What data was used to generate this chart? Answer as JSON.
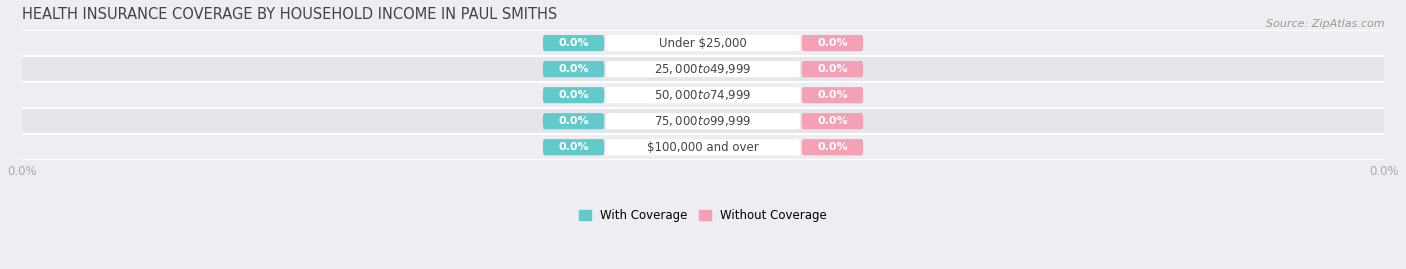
{
  "title": "HEALTH INSURANCE COVERAGE BY HOUSEHOLD INCOME IN PAUL SMITHS",
  "source_text": "Source: ZipAtlas.com",
  "categories": [
    "Under $25,000",
    "$25,000 to $49,999",
    "$50,000 to $74,999",
    "$75,000 to $99,999",
    "$100,000 and over"
  ],
  "with_coverage": [
    0.0,
    0.0,
    0.0,
    0.0,
    0.0
  ],
  "without_coverage": [
    0.0,
    0.0,
    0.0,
    0.0,
    0.0
  ],
  "with_coverage_color": "#62caca",
  "without_coverage_color": "#f4a0b5",
  "category_label_color": "#444444",
  "title_color": "#444444",
  "source_color": "#999999",
  "axis_label_color": "#aaaaaa",
  "row_even_color": "#ededf2",
  "row_odd_color": "#e5e5eb",
  "separator_color": "#ffffff",
  "background_color": "#ededf2",
  "title_fontsize": 10.5,
  "source_fontsize": 8,
  "tick_fontsize": 8.5,
  "cat_fontsize": 8.5,
  "val_fontsize": 8,
  "xlim": [
    -100,
    100
  ],
  "bar_height": 0.62
}
